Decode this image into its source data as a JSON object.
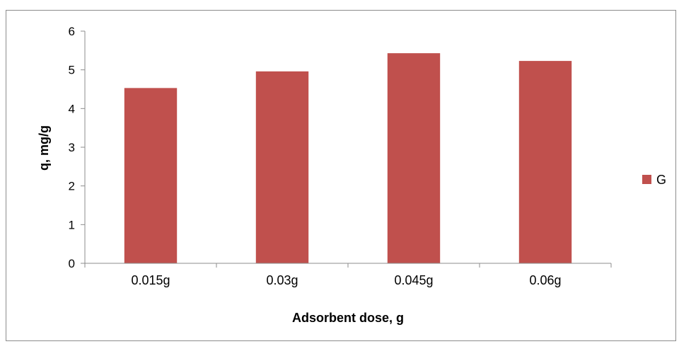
{
  "chart_data": {
    "type": "bar",
    "categories": [
      "0.015g",
      "0.03g",
      "0.045g",
      "0.06g"
    ],
    "series": [
      {
        "name": "G",
        "values": [
          4.53,
          4.96,
          5.43,
          5.23
        ],
        "color": "#C0504D"
      }
    ],
    "xlabel": "Adsorbent dose, g",
    "ylabel": "q, mg/g",
    "ylim": [
      0,
      6
    ],
    "yticks": [
      0,
      1,
      2,
      3,
      4,
      5,
      6
    ],
    "grid": false,
    "legend": "right"
  }
}
